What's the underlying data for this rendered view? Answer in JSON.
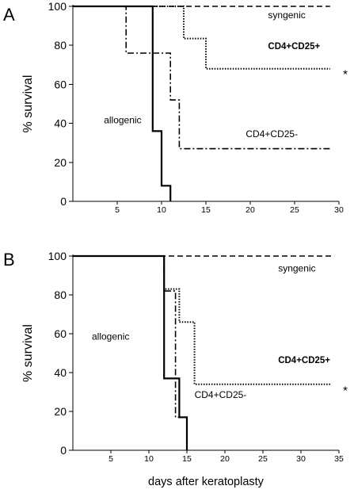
{
  "chart_data": [
    {
      "type": "line",
      "panel_label": "A",
      "xlabel": "",
      "ylabel": "% survival",
      "xlim": [
        0,
        30
      ],
      "ylim": [
        0,
        100
      ],
      "x_ticks": [
        5,
        10,
        15,
        20,
        25,
        30
      ],
      "y_ticks": [
        0,
        20,
        40,
        60,
        80,
        100
      ],
      "series": [
        {
          "name": "syngenic",
          "style": "dashed",
          "points": [
            [
              0,
              100
            ],
            [
              29,
              100
            ]
          ]
        },
        {
          "name": "CD4+CD25+",
          "style": "dotted",
          "points": [
            [
              0,
              100
            ],
            [
              12.5,
              100
            ],
            [
              12.5,
              83.5
            ],
            [
              15,
              83.5
            ],
            [
              15,
              68
            ],
            [
              29,
              68
            ]
          ]
        },
        {
          "name": "CD4+CD25-",
          "style": "dashdot",
          "points": [
            [
              0,
              100
            ],
            [
              6,
              100
            ],
            [
              6,
              76
            ],
            [
              11,
              76
            ],
            [
              11,
              52
            ],
            [
              12,
              52
            ],
            [
              12,
              27
            ],
            [
              29,
              27
            ]
          ]
        },
        {
          "name": "allogenic",
          "style": "solid",
          "points": [
            [
              0,
              100
            ],
            [
              9,
              100
            ],
            [
              9,
              36
            ],
            [
              10,
              36
            ],
            [
              10,
              8
            ],
            [
              11,
              8
            ],
            [
              11,
              0
            ]
          ]
        }
      ],
      "annotations": [
        {
          "text": "syngenic",
          "x": 22,
          "y": 94,
          "bold": false
        },
        {
          "text": "CD4+CD25+",
          "x": 22,
          "y": 78,
          "bold": true
        },
        {
          "text": "CD4+CD25-",
          "x": 19.5,
          "y": 33,
          "bold": false
        },
        {
          "text": "allogenic",
          "x": 3.5,
          "y": 40,
          "bold": false
        }
      ],
      "significance": "*"
    },
    {
      "type": "line",
      "panel_label": "B",
      "xlabel": "days after keratoplasty",
      "ylabel": "% survival",
      "xlim": [
        0,
        35
      ],
      "ylim": [
        0,
        100
      ],
      "x_ticks": [
        5,
        10,
        15,
        20,
        25,
        30,
        35
      ],
      "y_ticks": [
        0,
        20,
        40,
        60,
        80,
        100
      ],
      "series": [
        {
          "name": "syngenic",
          "style": "dashed",
          "points": [
            [
              0,
              100
            ],
            [
              34,
              100
            ]
          ]
        },
        {
          "name": "CD4+CD25+",
          "style": "dotted",
          "points": [
            [
              0,
              100
            ],
            [
              12,
              100
            ],
            [
              12,
              83
            ],
            [
              14,
              83
            ],
            [
              14,
              66
            ],
            [
              16,
              66
            ],
            [
              16,
              34
            ],
            [
              34,
              34
            ]
          ]
        },
        {
          "name": "CD4+CD25-",
          "style": "dashdot",
          "points": [
            [
              0,
              100
            ],
            [
              12,
              100
            ],
            [
              12,
              82
            ],
            [
              13.5,
              82
            ],
            [
              13.5,
              17
            ],
            [
              15,
              17
            ],
            [
              15,
              0
            ]
          ]
        },
        {
          "name": "allogenic",
          "style": "solid",
          "points": [
            [
              0,
              100
            ],
            [
              12,
              100
            ],
            [
              12,
              37
            ],
            [
              14,
              37
            ],
            [
              14,
              17
            ],
            [
              15,
              17
            ],
            [
              15,
              0
            ]
          ]
        }
      ],
      "annotations": [
        {
          "text": "syngenic",
          "x": 27,
          "y": 92,
          "bold": false
        },
        {
          "text": "CD4+CD25+",
          "x": 27,
          "y": 45,
          "bold": true
        },
        {
          "text": "CD4+CD25-",
          "x": 16,
          "y": 27,
          "bold": false
        },
        {
          "text": "allogenic",
          "x": 2.5,
          "y": 57,
          "bold": false
        }
      ],
      "significance": "*"
    }
  ]
}
